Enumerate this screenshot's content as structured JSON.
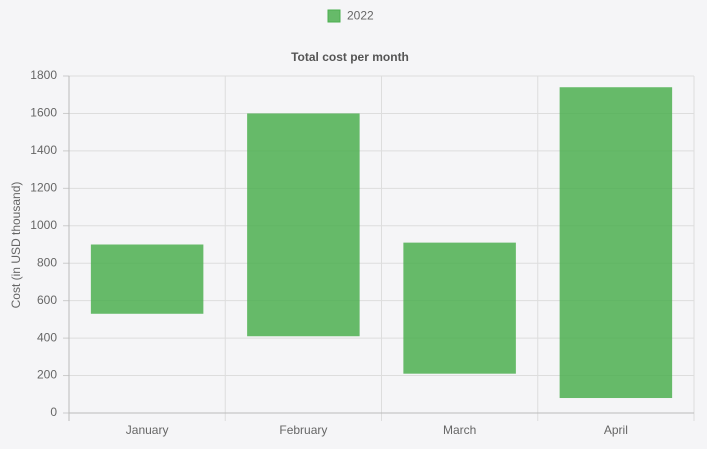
{
  "chart_data": {
    "type": "floating-bar",
    "title": "Total cost per month",
    "y_label": "Cost (in USD thousand)",
    "categories": [
      "January",
      "February",
      "March",
      "April"
    ],
    "series": [
      {
        "name": "2022",
        "color": "#4caf50",
        "values": [
          [
            530,
            900
          ],
          [
            410,
            1600
          ],
          [
            210,
            910
          ],
          [
            80,
            1740
          ]
        ]
      }
    ],
    "ylim": [
      0,
      1800
    ],
    "yticks": [
      0,
      200,
      400,
      600,
      800,
      1000,
      1200,
      1400,
      1600,
      1800
    ],
    "grid": true,
    "legend": "top"
  }
}
